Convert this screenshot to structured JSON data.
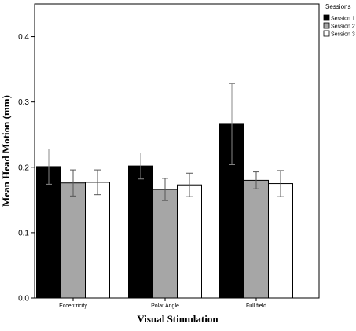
{
  "chart_data": {
    "type": "bar",
    "categories": [
      "Eccentricity",
      "Polar Angle",
      "Full field"
    ],
    "series": [
      {
        "name": "Session 1",
        "color": "#000000",
        "values": [
          0.201,
          0.202,
          0.266
        ],
        "errors": [
          0.027,
          0.02,
          0.062
        ]
      },
      {
        "name": "Session 2",
        "color": "#a6a6a6",
        "values": [
          0.176,
          0.166,
          0.18
        ],
        "errors": [
          0.02,
          0.017,
          0.013
        ]
      },
      {
        "name": "Session 3",
        "color": "#ffffff",
        "values": [
          0.177,
          0.173,
          0.175
        ],
        "errors": [
          0.019,
          0.018,
          0.02
        ]
      }
    ],
    "xlabel": "Visual Stimulation",
    "ylabel": "Mean Head Motion (mm)",
    "ylim": [
      0,
      0.45
    ],
    "yticks": [
      "0.0",
      "0.1",
      "0.2",
      "0.3",
      "0.4"
    ],
    "legend": {
      "title": "Sessions",
      "placement": "top-right outside"
    },
    "grid": false
  }
}
